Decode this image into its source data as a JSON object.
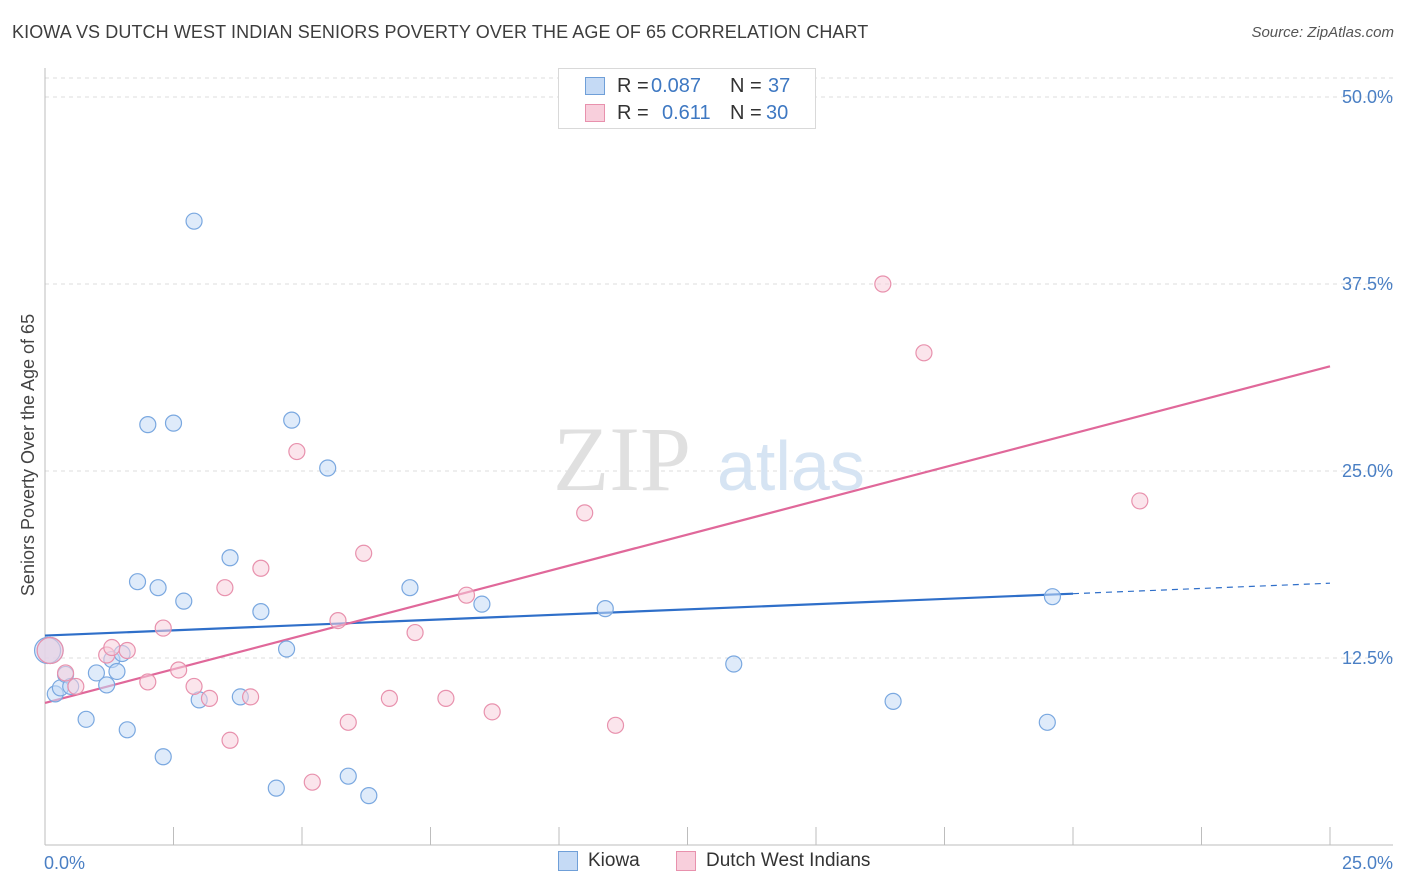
{
  "title": "KIOWA VS DUTCH WEST INDIAN SENIORS POVERTY OVER THE AGE OF 65 CORRELATION CHART",
  "source": "Source: ZipAtlas.com",
  "watermark": {
    "zip": "ZIP",
    "atlas": "atlas"
  },
  "legend_top": {
    "rows": [
      {
        "r_label": "R =",
        "r_value": "0.087",
        "n_label": "N =",
        "n_value": "37",
        "color": "#a9c8f0",
        "border": "#6f9fd8"
      },
      {
        "r_label": "R =",
        "r_value": "0.611",
        "n_label": "N =",
        "n_value": "30",
        "color": "#f7c0d0",
        "border": "#e891ad"
      }
    ]
  },
  "legend_bottom": [
    {
      "label": "Kiowa",
      "color": "#a9c8f0",
      "border": "#6f9fd8"
    },
    {
      "label": "Dutch West Indians",
      "color": "#f7c0d0",
      "border": "#e891ad"
    }
  ],
  "chart_data": {
    "type": "scatter",
    "title": "KIOWA VS DUTCH WEST INDIAN SENIORS POVERTY OVER THE AGE OF 65 CORRELATION CHART",
    "xlabel": "",
    "ylabel": "Seniors Poverty Over the Age of 65",
    "xlim": [
      0,
      25
    ],
    "ylim": [
      0,
      50
    ],
    "x_tick_labels": [
      "0.0%",
      "25.0%"
    ],
    "y_ticks": [
      12.5,
      25.0,
      37.5,
      50.0
    ],
    "y_tick_labels": [
      "12.5%",
      "25.0%",
      "37.5%",
      "50.0%"
    ],
    "grid": true,
    "legend_position": "top-center",
    "series": [
      {
        "name": "Kiowa",
        "color": "#7aa8e0",
        "fill": "#c5daf5",
        "r": 0.087,
        "n": 37,
        "x": [
          0.1,
          0.2,
          0.3,
          0.4,
          0.5,
          0.8,
          1.0,
          1.2,
          1.3,
          1.5,
          1.6,
          1.8,
          2.0,
          2.2,
          2.3,
          2.5,
          2.7,
          2.9,
          3.0,
          3.6,
          3.8,
          4.2,
          4.5,
          4.7,
          4.8,
          5.5,
          5.9,
          6.3,
          7.1,
          8.5,
          10.9,
          13.4,
          16.5,
          19.5,
          19.6,
          0.05,
          1.4
        ],
        "y": [
          13.0,
          10.1,
          10.5,
          11.4,
          10.6,
          8.4,
          11.5,
          10.7,
          12.4,
          12.8,
          7.7,
          17.6,
          28.1,
          17.2,
          5.9,
          28.2,
          16.3,
          41.7,
          9.7,
          19.2,
          9.9,
          15.6,
          3.8,
          13.1,
          28.4,
          25.2,
          4.6,
          3.3,
          17.2,
          16.1,
          15.8,
          12.1,
          9.6,
          8.2,
          16.6,
          13.0,
          11.6
        ]
      },
      {
        "name": "Dutch West Indians",
        "color": "#e891ad",
        "fill": "#f8cfdc",
        "r": 0.611,
        "n": 30,
        "x": [
          0.1,
          0.4,
          0.6,
          1.2,
          1.3,
          1.6,
          2.0,
          2.3,
          2.6,
          2.9,
          3.2,
          3.5,
          3.6,
          4.0,
          4.2,
          4.9,
          5.2,
          5.7,
          5.9,
          6.2,
          6.7,
          7.2,
          7.8,
          8.2,
          8.7,
          10.5,
          11.1,
          16.3,
          17.1,
          21.3
        ],
        "y": [
          13.0,
          11.5,
          10.6,
          12.7,
          13.2,
          13.0,
          10.9,
          14.5,
          11.7,
          10.6,
          9.8,
          17.2,
          7.0,
          9.9,
          18.5,
          26.3,
          4.2,
          15.0,
          8.2,
          19.5,
          9.8,
          14.2,
          9.8,
          16.7,
          8.9,
          22.2,
          8.0,
          37.5,
          32.9,
          23.0
        ]
      }
    ],
    "trendlines": [
      {
        "series": "Kiowa",
        "x": [
          0,
          20,
          25
        ],
        "y": [
          14.0,
          16.8,
          17.5
        ],
        "dashed_after_x": 20
      },
      {
        "series": "Dutch West Indians",
        "x": [
          0,
          25
        ],
        "y": [
          9.5,
          32.0
        ]
      }
    ]
  }
}
